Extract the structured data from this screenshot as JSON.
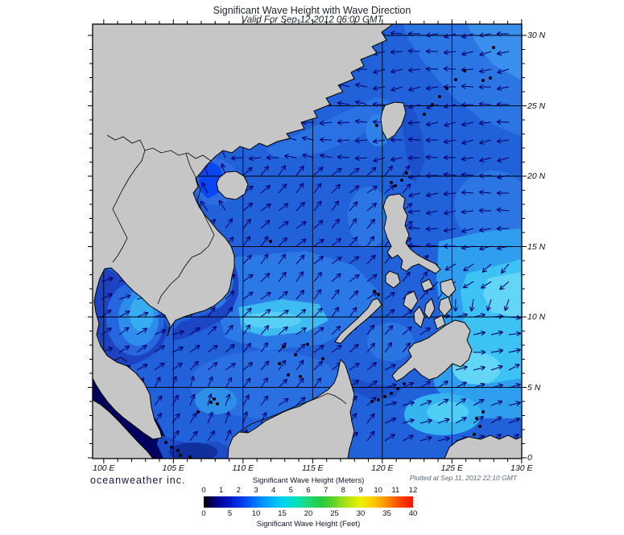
{
  "header": {
    "title": "Significant Wave Height with Wave Direction",
    "subtitle": "Valid For Sep-12-2012 06:00 GMT"
  },
  "map": {
    "lon_labels": [
      "100 E",
      "105 E",
      "110 E",
      "115 E",
      "120 E",
      "125 E",
      "130 E"
    ],
    "lat_labels": [
      "30 N",
      "25 N",
      "20 N",
      "15 N",
      "10 N",
      "5 N",
      "0"
    ]
  },
  "legend": {
    "meters_label": "Significant Wave Height (Meters)",
    "feet_label": "Significant Wave Height (Feet)",
    "meters_ticks": [
      "0",
      "1",
      "2",
      "3",
      "4",
      "5",
      "6",
      "7",
      "8",
      "9",
      "10",
      "11",
      "12"
    ],
    "feet_ticks": [
      "0",
      "5",
      "10",
      "15",
      "20",
      "25",
      "30",
      "35",
      "40"
    ],
    "gradient": [
      "#000000",
      "#00008c",
      "#0018c8",
      "#0040f0",
      "#0078ff",
      "#00aaff",
      "#00d2f0",
      "#00e0c0",
      "#20d878",
      "#28c840",
      "#66d428",
      "#b4e414",
      "#f0f000",
      "#ffc800",
      "#ff8c00",
      "#ff4600",
      "#f01400"
    ]
  },
  "footer": {
    "brand": "oceanweather inc.",
    "plotted": "Plotted at Sep 11, 2012 22:10 GMT"
  },
  "colors": {
    "ocean": "#2161da",
    "land": "#c6c6c6",
    "coastline": "#000000",
    "grid": "#000000",
    "arrow": "#00006e",
    "frame": "#000000"
  }
}
